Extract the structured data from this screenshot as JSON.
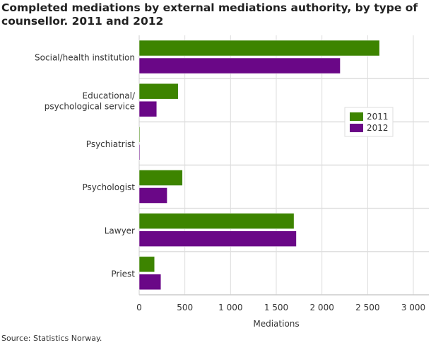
{
  "chart_data": {
    "type": "bar",
    "orientation": "horizontal",
    "title": "Completed mediations by external mediations authority, by type of counsellor. 2011 and 2012",
    "xlabel": "Mediations",
    "ylabel": "",
    "xlim": [
      0,
      3000
    ],
    "xticks": [
      0,
      500,
      1000,
      1500,
      2000,
      2500,
      3000
    ],
    "xtick_labels": [
      "0",
      "500",
      "1 000",
      "1 500",
      "2 000",
      "2 500",
      "3 000"
    ],
    "grid": true,
    "legend_position": "right",
    "categories": [
      [
        "Social/health institution"
      ],
      [
        "Educational/",
        "psychological service"
      ],
      [
        "Psychiatrist"
      ],
      [
        "Psychologist"
      ],
      [
        "Lawyer"
      ],
      [
        "Priest"
      ]
    ],
    "series": [
      {
        "name": "2011",
        "color": "#3d8400",
        "values": [
          2630,
          427,
          5,
          474,
          1694,
          168
        ]
      },
      {
        "name": "2012",
        "color": "#6a0787",
        "values": [
          2200,
          192,
          4,
          306,
          1720,
          238
        ]
      }
    ]
  },
  "source": "Source: Statistics Norway."
}
